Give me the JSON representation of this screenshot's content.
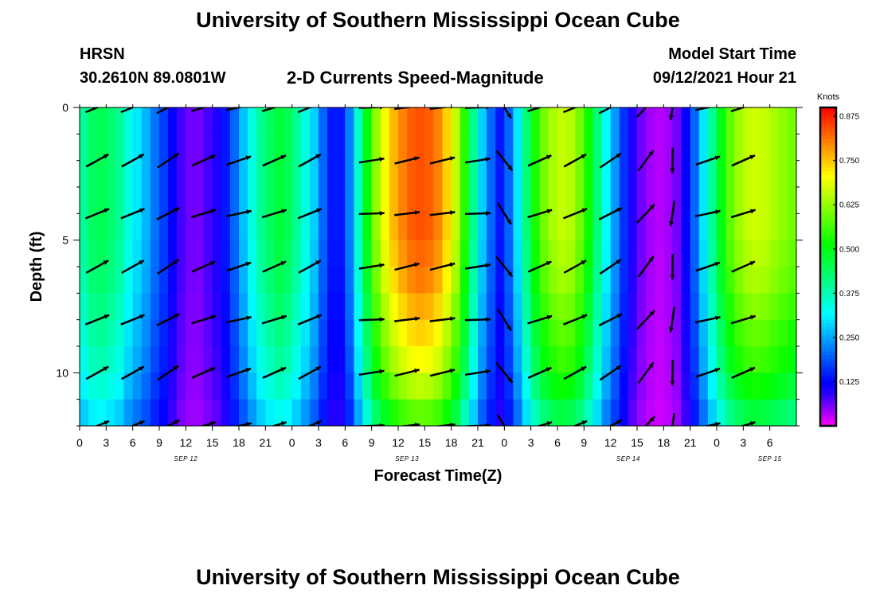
{
  "title": "University of Southern Mississippi Ocean Cube",
  "footer_title": "University of Southern Mississippi Ocean Cube",
  "station": {
    "name": "HRSN",
    "coords": "30.2610N  89.0801W"
  },
  "subtitle": "2-D Currents Speed-Magnitude",
  "model_start": {
    "label": "Model Start Time",
    "value": "09/12/2021 Hour 21"
  },
  "chart_data": {
    "type": "heatmap",
    "title": "2-D Currents Speed-Magnitude",
    "xlabel": "Forecast Time(Z)",
    "ylabel": "Depth (ft)",
    "xlim": [
      0,
      81
    ],
    "ylim": [
      12,
      0
    ],
    "x_tick_labels": [
      "0",
      "3",
      "6",
      "9",
      "12",
      "15",
      "18",
      "21",
      "0",
      "3",
      "6",
      "9",
      "12",
      "15",
      "18",
      "21",
      "0",
      "3",
      "6",
      "9",
      "12",
      "15",
      "18",
      "21",
      "0",
      "3",
      "6"
    ],
    "x_tick_hours": [
      0,
      3,
      6,
      9,
      12,
      15,
      18,
      21,
      24,
      27,
      30,
      33,
      36,
      39,
      42,
      45,
      48,
      51,
      54,
      57,
      60,
      63,
      66,
      69,
      72,
      75,
      78
    ],
    "date_labels": [
      {
        "text": "SEP 12",
        "hour": 12
      },
      {
        "text": "SEP 13",
        "hour": 37
      },
      {
        "text": "SEP 14",
        "hour": 62
      },
      {
        "text": "SEP 15",
        "hour": 78
      }
    ],
    "y_ticks": [
      0,
      5,
      10
    ],
    "colorbar": {
      "label": "Knots",
      "min": 0.0,
      "max": 0.9,
      "ticks": [
        "0.875",
        "0.750",
        "0.625",
        "0.500",
        "0.375",
        "0.250",
        "0.125"
      ],
      "tick_values": [
        0.875,
        0.75,
        0.625,
        0.5,
        0.375,
        0.25,
        0.125
      ]
    },
    "profile_hours": [
      0,
      1,
      2,
      3,
      4,
      5,
      6,
      7,
      8,
      9,
      10,
      11,
      12,
      13,
      14,
      15,
      16,
      17,
      18,
      19,
      20,
      21,
      22,
      23,
      24,
      25,
      26,
      27,
      28,
      29,
      30,
      31,
      32,
      33,
      34,
      35,
      36,
      37,
      38,
      39,
      40,
      41,
      42,
      43,
      44,
      45,
      46,
      47,
      48,
      49,
      50,
      51,
      52,
      53,
      54,
      55,
      56,
      57,
      58,
      59,
      60,
      61,
      62,
      63,
      64,
      65,
      66,
      67,
      68,
      69,
      70,
      71,
      72,
      73,
      74,
      75,
      76,
      77,
      78,
      79,
      80
    ],
    "surface_speed": [
      0.4,
      0.44,
      0.45,
      0.43,
      0.4,
      0.34,
      0.3,
      0.26,
      0.21,
      0.17,
      0.12,
      0.08,
      0.06,
      0.06,
      0.08,
      0.1,
      0.14,
      0.2,
      0.27,
      0.34,
      0.4,
      0.44,
      0.47,
      0.45,
      0.4,
      0.34,
      0.28,
      0.2,
      0.14,
      0.14,
      0.22,
      0.36,
      0.5,
      0.62,
      0.7,
      0.76,
      0.8,
      0.83,
      0.84,
      0.83,
      0.8,
      0.74,
      0.66,
      0.54,
      0.4,
      0.28,
      0.2,
      0.14,
      0.2,
      0.3,
      0.42,
      0.53,
      0.6,
      0.64,
      0.66,
      0.65,
      0.6,
      0.52,
      0.42,
      0.32,
      0.24,
      0.16,
      0.1,
      0.06,
      0.04,
      0.03,
      0.04,
      0.06,
      0.12,
      0.2,
      0.3,
      0.4,
      0.5,
      0.58,
      0.63,
      0.66,
      0.67,
      0.66,
      0.64,
      0.62,
      0.6
    ],
    "depth_scale": [
      1.0,
      1.0,
      1.0,
      1.0,
      1.0,
      0.98,
      0.96,
      0.92,
      0.88,
      0.84,
      0.78,
      0.7
    ],
    "depth_points_ft": [
      0.5,
      1.5,
      2.5,
      3.5,
      4.5,
      5.5,
      6.5,
      7.5,
      8.5,
      9.5,
      10.5,
      11.5
    ],
    "vector_depths_ft": [
      0,
      2,
      4,
      6,
      8,
      10,
      12
    ],
    "vector_hours": [
      2,
      6,
      10,
      14,
      18,
      22,
      26,
      33,
      37,
      41,
      45,
      48,
      52,
      56,
      60,
      64,
      67,
      71,
      75
    ],
    "surface_direction_deg": [
      25,
      25,
      30,
      20,
      15,
      20,
      25,
      5,
      10,
      10,
      5,
      -55,
      20,
      25,
      30,
      50,
      -95,
      15,
      20
    ]
  }
}
